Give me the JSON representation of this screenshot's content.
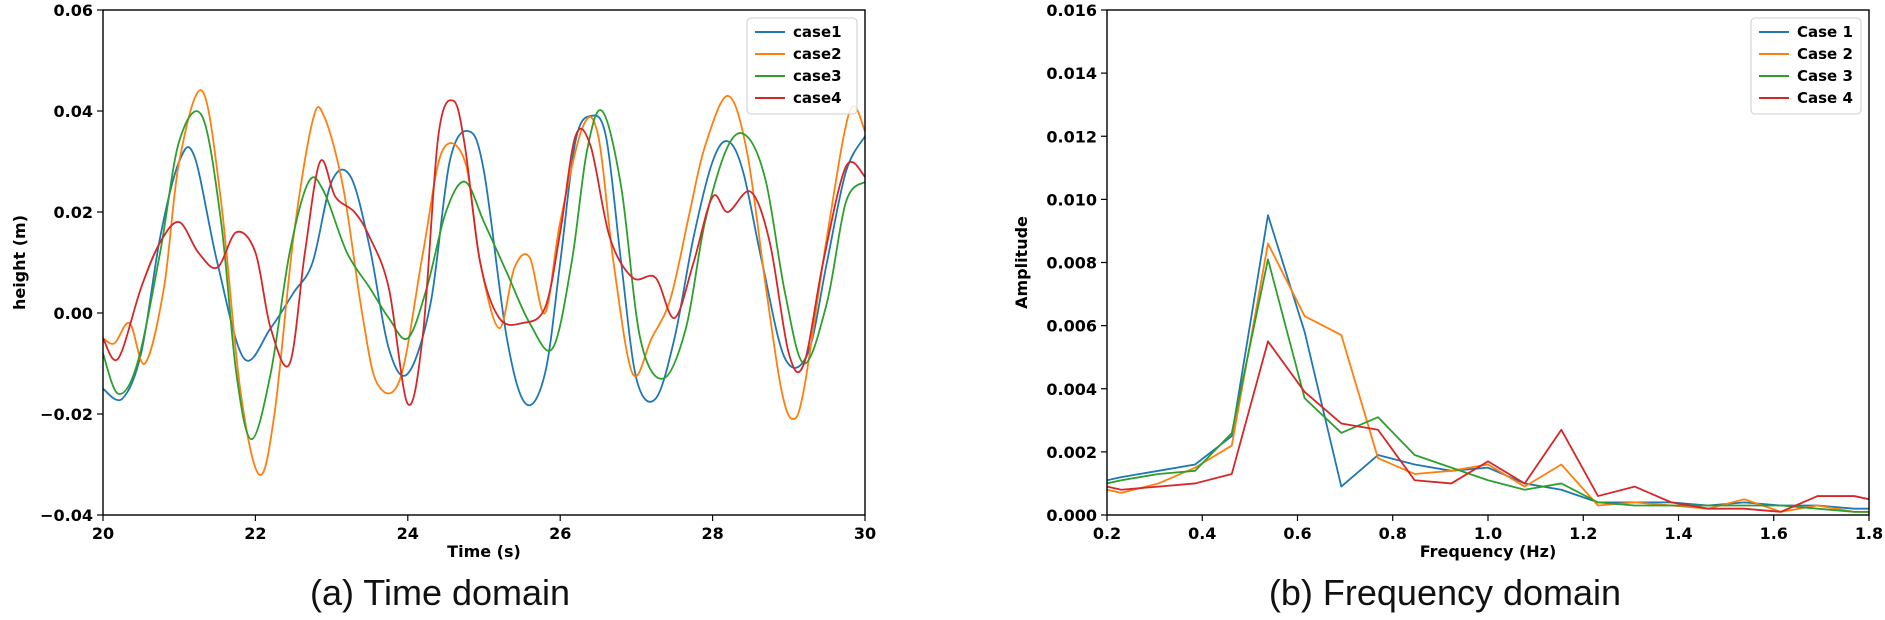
{
  "captions": {
    "left": "(a) Time domain",
    "right": "(b) Frequency domain"
  },
  "colors": {
    "series": [
      "#1f77b4",
      "#ff7f0e",
      "#2ca02c",
      "#d62728"
    ]
  },
  "chart_data": [
    {
      "type": "line",
      "title": "",
      "xlabel": "Time (s)",
      "ylabel": "height (m)",
      "xlim": [
        20,
        30
      ],
      "ylim": [
        -0.04,
        0.06
      ],
      "xticks": [
        20,
        22,
        24,
        26,
        28,
        30
      ],
      "xtick_labels": [
        "20",
        "22",
        "24",
        "26",
        "28",
        "30"
      ],
      "yticks": [
        -0.04,
        -0.02,
        0.0,
        0.02,
        0.04,
        0.06
      ],
      "ytick_labels": [
        "−0.04",
        "−0.02",
        "0.00",
        "0.02",
        "0.04",
        "0.06"
      ],
      "legend_position": "top-right",
      "series": [
        {
          "name": "case1",
          "x": [
            20.0,
            20.25,
            20.5,
            20.75,
            21.0,
            21.2,
            21.5,
            21.85,
            22.2,
            22.5,
            22.75,
            23.0,
            23.25,
            23.5,
            23.75,
            24.0,
            24.3,
            24.55,
            24.8,
            25.0,
            25.3,
            25.55,
            25.8,
            26.0,
            26.2,
            26.4,
            26.6,
            26.8,
            27.0,
            27.25,
            27.5,
            27.75,
            28.0,
            28.2,
            28.4,
            28.65,
            28.95,
            29.25,
            29.5,
            29.75,
            30.0
          ],
          "y": [
            -0.015,
            -0.017,
            -0.008,
            0.015,
            0.03,
            0.031,
            0.01,
            -0.009,
            -0.003,
            0.004,
            0.01,
            0.026,
            0.027,
            0.013,
            -0.007,
            -0.012,
            0.002,
            0.03,
            0.036,
            0.028,
            -0.005,
            -0.018,
            -0.012,
            0.01,
            0.034,
            0.039,
            0.035,
            0.01,
            -0.013,
            -0.017,
            -0.005,
            0.015,
            0.03,
            0.034,
            0.028,
            0.01,
            -0.009,
            -0.008,
            0.01,
            0.028,
            0.035
          ]
        },
        {
          "name": "case2",
          "x": [
            20.0,
            20.15,
            20.35,
            20.55,
            20.8,
            21.0,
            21.3,
            21.55,
            21.8,
            22.05,
            22.25,
            22.5,
            22.75,
            22.9,
            23.15,
            23.4,
            23.6,
            23.9,
            24.2,
            24.45,
            24.75,
            24.95,
            25.2,
            25.4,
            25.6,
            25.8,
            26.0,
            26.3,
            26.5,
            26.7,
            26.95,
            27.2,
            27.45,
            27.7,
            27.9,
            28.2,
            28.45,
            28.7,
            28.9,
            29.05,
            29.2,
            29.5,
            29.8,
            30.0
          ],
          "y": [
            -0.005,
            -0.006,
            -0.002,
            -0.01,
            0.005,
            0.03,
            0.044,
            0.022,
            -0.015,
            -0.032,
            -0.02,
            0.015,
            0.038,
            0.039,
            0.025,
            0.0,
            -0.014,
            -0.013,
            0.012,
            0.032,
            0.03,
            0.01,
            -0.003,
            0.009,
            0.011,
            0.0,
            0.018,
            0.037,
            0.035,
            0.01,
            -0.012,
            -0.005,
            0.003,
            0.02,
            0.033,
            0.043,
            0.032,
            0.005,
            -0.015,
            -0.021,
            -0.015,
            0.015,
            0.04,
            0.036
          ]
        },
        {
          "name": "case3",
          "x": [
            20.0,
            20.2,
            20.45,
            20.75,
            21.0,
            21.3,
            21.55,
            21.75,
            21.95,
            22.2,
            22.45,
            22.7,
            22.9,
            23.2,
            23.5,
            23.75,
            24.0,
            24.25,
            24.5,
            24.75,
            25.0,
            25.3,
            25.6,
            25.9,
            26.15,
            26.35,
            26.55,
            26.8,
            27.05,
            27.35,
            27.65,
            27.9,
            28.2,
            28.45,
            28.7,
            28.95,
            29.2,
            29.5,
            29.75,
            30.0
          ],
          "y": [
            -0.008,
            -0.016,
            -0.01,
            0.012,
            0.034,
            0.039,
            0.018,
            -0.012,
            -0.025,
            -0.012,
            0.012,
            0.026,
            0.024,
            0.012,
            0.005,
            -0.001,
            -0.005,
            0.005,
            0.02,
            0.026,
            0.018,
            0.008,
            -0.002,
            -0.007,
            0.01,
            0.032,
            0.04,
            0.025,
            -0.005,
            -0.013,
            -0.003,
            0.018,
            0.033,
            0.035,
            0.026,
            0.004,
            -0.01,
            0.002,
            0.022,
            0.026
          ]
        },
        {
          "name": "case4",
          "x": [
            20.0,
            20.2,
            20.5,
            20.75,
            21.0,
            21.25,
            21.5,
            21.75,
            22.0,
            22.2,
            22.45,
            22.65,
            22.85,
            23.05,
            23.3,
            23.5,
            23.75,
            24.0,
            24.2,
            24.4,
            24.6,
            24.75,
            24.95,
            25.2,
            25.5,
            25.8,
            26.0,
            26.2,
            26.4,
            26.65,
            26.95,
            27.25,
            27.5,
            27.75,
            28.0,
            28.2,
            28.5,
            28.75,
            29.0,
            29.2,
            29.45,
            29.75,
            30.0
          ],
          "y": [
            -0.005,
            -0.009,
            0.005,
            0.014,
            0.018,
            0.012,
            0.009,
            0.016,
            0.012,
            -0.003,
            -0.01,
            0.012,
            0.03,
            0.023,
            0.02,
            0.015,
            0.005,
            -0.018,
            -0.004,
            0.035,
            0.042,
            0.033,
            0.01,
            -0.001,
            -0.002,
            0.001,
            0.016,
            0.035,
            0.033,
            0.015,
            0.007,
            0.007,
            -0.001,
            0.01,
            0.023,
            0.02,
            0.024,
            0.014,
            -0.008,
            -0.01,
            0.01,
            0.029,
            0.027
          ]
        }
      ]
    },
    {
      "type": "line",
      "title": "",
      "xlabel": "Frequency (Hz)",
      "ylabel": "Amplitude",
      "xlim": [
        0.2,
        1.8
      ],
      "ylim": [
        0.0,
        0.016
      ],
      "xticks": [
        0.2,
        0.4,
        0.6,
        0.8,
        1.0,
        1.2,
        1.4,
        1.6,
        1.8
      ],
      "xtick_labels": [
        "0.2",
        "0.4",
        "0.6",
        "0.8",
        "1.0",
        "1.2",
        "1.4",
        "1.6",
        "1.8"
      ],
      "yticks": [
        0.0,
        0.002,
        0.004,
        0.006,
        0.008,
        0.01,
        0.012,
        0.014,
        0.016
      ],
      "ytick_labels": [
        "0.000",
        "0.002",
        "0.004",
        "0.006",
        "0.008",
        "0.010",
        "0.012",
        "0.014",
        "0.016"
      ],
      "legend_position": "top-right",
      "x": [
        0.2,
        0.23,
        0.308,
        0.385,
        0.462,
        0.538,
        0.615,
        0.692,
        0.769,
        0.846,
        0.923,
        1.0,
        1.077,
        1.154,
        1.231,
        1.308,
        1.385,
        1.462,
        1.538,
        1.615,
        1.692,
        1.769,
        1.8
      ],
      "series": [
        {
          "name": "Case 1",
          "values": [
            0.0011,
            0.0012,
            0.0014,
            0.0016,
            0.0025,
            0.0095,
            0.0058,
            0.0009,
            0.0019,
            0.0016,
            0.0014,
            0.0015,
            0.001,
            0.0008,
            0.0004,
            0.0004,
            0.0004,
            0.0003,
            0.0004,
            0.0003,
            0.0003,
            0.0002,
            0.0002
          ]
        },
        {
          "name": "Case 2",
          "values": [
            0.0008,
            0.0007,
            0.001,
            0.0015,
            0.0022,
            0.0086,
            0.0063,
            0.0057,
            0.0018,
            0.0013,
            0.0014,
            0.0016,
            0.0009,
            0.0016,
            0.0003,
            0.0004,
            0.0003,
            0.0002,
            0.0005,
            0.0001,
            0.0003,
            0.0001,
            0.0001
          ]
        },
        {
          "name": "Case 3",
          "values": [
            0.001,
            0.0011,
            0.0013,
            0.0014,
            0.0026,
            0.0081,
            0.0037,
            0.0026,
            0.0031,
            0.0019,
            0.0015,
            0.0011,
            0.0008,
            0.001,
            0.0004,
            0.0003,
            0.0003,
            0.0003,
            0.0003,
            0.0003,
            0.0002,
            0.0001,
            0.0001
          ]
        },
        {
          "name": "Case 4",
          "values": [
            0.0009,
            0.0008,
            0.0009,
            0.001,
            0.0013,
            0.0055,
            0.0039,
            0.0029,
            0.0027,
            0.0011,
            0.001,
            0.0017,
            0.001,
            0.0027,
            0.0006,
            0.0009,
            0.0004,
            0.0002,
            0.0002,
            0.0001,
            0.0006,
            0.0006,
            0.0005
          ]
        }
      ]
    }
  ]
}
